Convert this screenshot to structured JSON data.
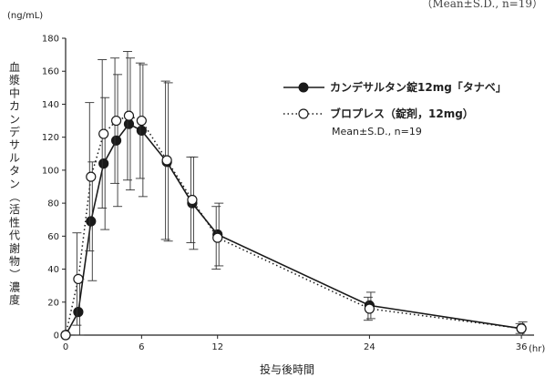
{
  "top_note": "（Mean±S.D., n=19）",
  "chart_data": {
    "type": "line",
    "title": "",
    "y_unit": "(ng/mL)",
    "x_unit": "(hr)",
    "ylabel": "血漿中カンデサルタン（活性代謝物）濃度",
    "xlabel": "投与後時間",
    "xlim": [
      0,
      37
    ],
    "ylim": [
      0,
      180
    ],
    "x_ticks": [
      0,
      6,
      12,
      24,
      36
    ],
    "y_ticks": [
      0,
      20,
      40,
      60,
      80,
      100,
      120,
      140,
      160,
      180
    ],
    "grid": false,
    "legend_position": "top-right",
    "legend_note": "Mean±S.D., n=19",
    "series": [
      {
        "name": "カンデサルタン錠12mg「タナベ」",
        "marker": "filled-circle",
        "line": "solid",
        "color": "#1a1a1a",
        "x": [
          0,
          1,
          2,
          3,
          4,
          5,
          6,
          8,
          10,
          12,
          24,
          36
        ],
        "y": [
          0,
          14,
          69,
          104,
          118,
          128,
          124,
          105,
          80,
          61,
          18,
          4
        ],
        "sd": [
          0,
          20,
          36,
          40,
          40,
          40,
          40,
          48,
          28,
          19,
          8,
          4
        ]
      },
      {
        "name": "ブロプレス（錠剤，12mg）",
        "marker": "open-circle",
        "line": "dotted",
        "color": "#1a1a1a",
        "x": [
          0,
          1,
          2,
          3,
          4,
          5,
          6,
          8,
          10,
          12,
          24,
          36
        ],
        "y": [
          0,
          34,
          96,
          122,
          130,
          133,
          130,
          106,
          82,
          59,
          16,
          4
        ],
        "sd": [
          0,
          28,
          45,
          45,
          38,
          39,
          35,
          48,
          26,
          19,
          7,
          3
        ]
      }
    ]
  }
}
